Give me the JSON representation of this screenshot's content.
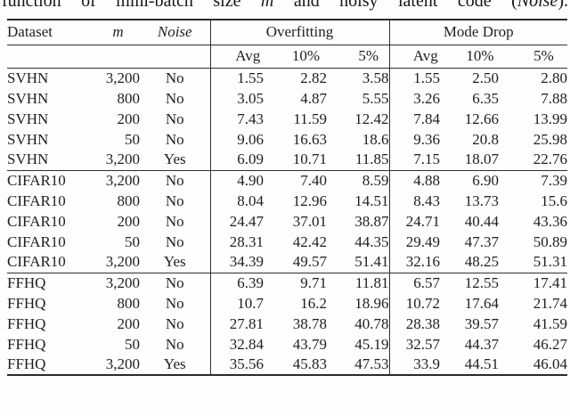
{
  "caption": {
    "parts": [
      {
        "text": "function of mini-batch size ",
        "italic": false
      },
      {
        "text": "m",
        "italic": true
      },
      {
        "text": " and noisy latent code (",
        "italic": false
      },
      {
        "text": "Noise",
        "italic": true
      },
      {
        "text": ").",
        "italic": false
      }
    ]
  },
  "table": {
    "header": {
      "dataset": "Dataset",
      "m": "m",
      "noise": "Noise",
      "group1": "Overfitting",
      "group2": "Mode Drop",
      "sub": [
        "Avg",
        "10%",
        "5%"
      ]
    },
    "sections": [
      {
        "rows": [
          {
            "dataset": "SVHN",
            "m": "3,200",
            "noise": "No",
            "overfitting": [
              "1.55",
              "2.82",
              "3.58"
            ],
            "mode_drop": [
              "1.55",
              "2.50",
              "2.80"
            ]
          },
          {
            "dataset": "SVHN",
            "m": "800",
            "noise": "No",
            "overfitting": [
              "3.05",
              "4.87",
              "5.55"
            ],
            "mode_drop": [
              "3.26",
              "6.35",
              "7.88"
            ]
          },
          {
            "dataset": "SVHN",
            "m": "200",
            "noise": "No",
            "overfitting": [
              "7.43",
              "11.59",
              "12.42"
            ],
            "mode_drop": [
              "7.84",
              "12.66",
              "13.99"
            ]
          },
          {
            "dataset": "SVHN",
            "m": "50",
            "noise": "No",
            "overfitting": [
              "9.06",
              "16.63",
              "18.6"
            ],
            "mode_drop": [
              "9.36",
              "20.8",
              "25.98"
            ]
          },
          {
            "dataset": "SVHN",
            "m": "3,200",
            "noise": "Yes",
            "overfitting": [
              "6.09",
              "10.71",
              "11.85"
            ],
            "mode_drop": [
              "7.15",
              "18.07",
              "22.76"
            ]
          }
        ]
      },
      {
        "rows": [
          {
            "dataset": "CIFAR10",
            "m": "3,200",
            "noise": "No",
            "overfitting": [
              "4.90",
              "7.40",
              "8.59"
            ],
            "mode_drop": [
              "4.88",
              "6.90",
              "7.39"
            ]
          },
          {
            "dataset": "CIFAR10",
            "m": "800",
            "noise": "No",
            "overfitting": [
              "8.04",
              "12.96",
              "14.51"
            ],
            "mode_drop": [
              "8.43",
              "13.73",
              "15.6"
            ]
          },
          {
            "dataset": "CIFAR10",
            "m": "200",
            "noise": "No",
            "overfitting": [
              "24.47",
              "37.01",
              "38.87"
            ],
            "mode_drop": [
              "24.71",
              "40.44",
              "43.36"
            ]
          },
          {
            "dataset": "CIFAR10",
            "m": "50",
            "noise": "No",
            "overfitting": [
              "28.31",
              "42.42",
              "44.35"
            ],
            "mode_drop": [
              "29.49",
              "47.37",
              "50.89"
            ]
          },
          {
            "dataset": "CIFAR10",
            "m": "3,200",
            "noise": "Yes",
            "overfitting": [
              "34.39",
              "49.57",
              "51.41"
            ],
            "mode_drop": [
              "32.16",
              "48.25",
              "51.31"
            ]
          }
        ]
      },
      {
        "rows": [
          {
            "dataset": "FFHQ",
            "m": "3,200",
            "noise": "No",
            "overfitting": [
              "6.39",
              "9.71",
              "11.81"
            ],
            "mode_drop": [
              "6.57",
              "12.55",
              "17.41"
            ]
          },
          {
            "dataset": "FFHQ",
            "m": "800",
            "noise": "No",
            "overfitting": [
              "10.7",
              "16.2",
              "18.96"
            ],
            "mode_drop": [
              "10.72",
              "17.64",
              "21.74"
            ]
          },
          {
            "dataset": "FFHQ",
            "m": "200",
            "noise": "No",
            "overfitting": [
              "27.81",
              "38.78",
              "40.78"
            ],
            "mode_drop": [
              "28.38",
              "39.57",
              "41.59"
            ]
          },
          {
            "dataset": "FFHQ",
            "m": "50",
            "noise": "No",
            "overfitting": [
              "32.84",
              "43.79",
              "45.19"
            ],
            "mode_drop": [
              "32.57",
              "44.37",
              "46.27"
            ]
          },
          {
            "dataset": "FFHQ",
            "m": "3,200",
            "noise": "Yes",
            "overfitting": [
              "35.56",
              "45.83",
              "47.53"
            ],
            "mode_drop": [
              "33.9",
              "44.51",
              "46.04"
            ]
          }
        ]
      }
    ]
  },
  "colors": {
    "text": "#1e1e1e",
    "rule": "#303030",
    "background": "#fefefe"
  }
}
